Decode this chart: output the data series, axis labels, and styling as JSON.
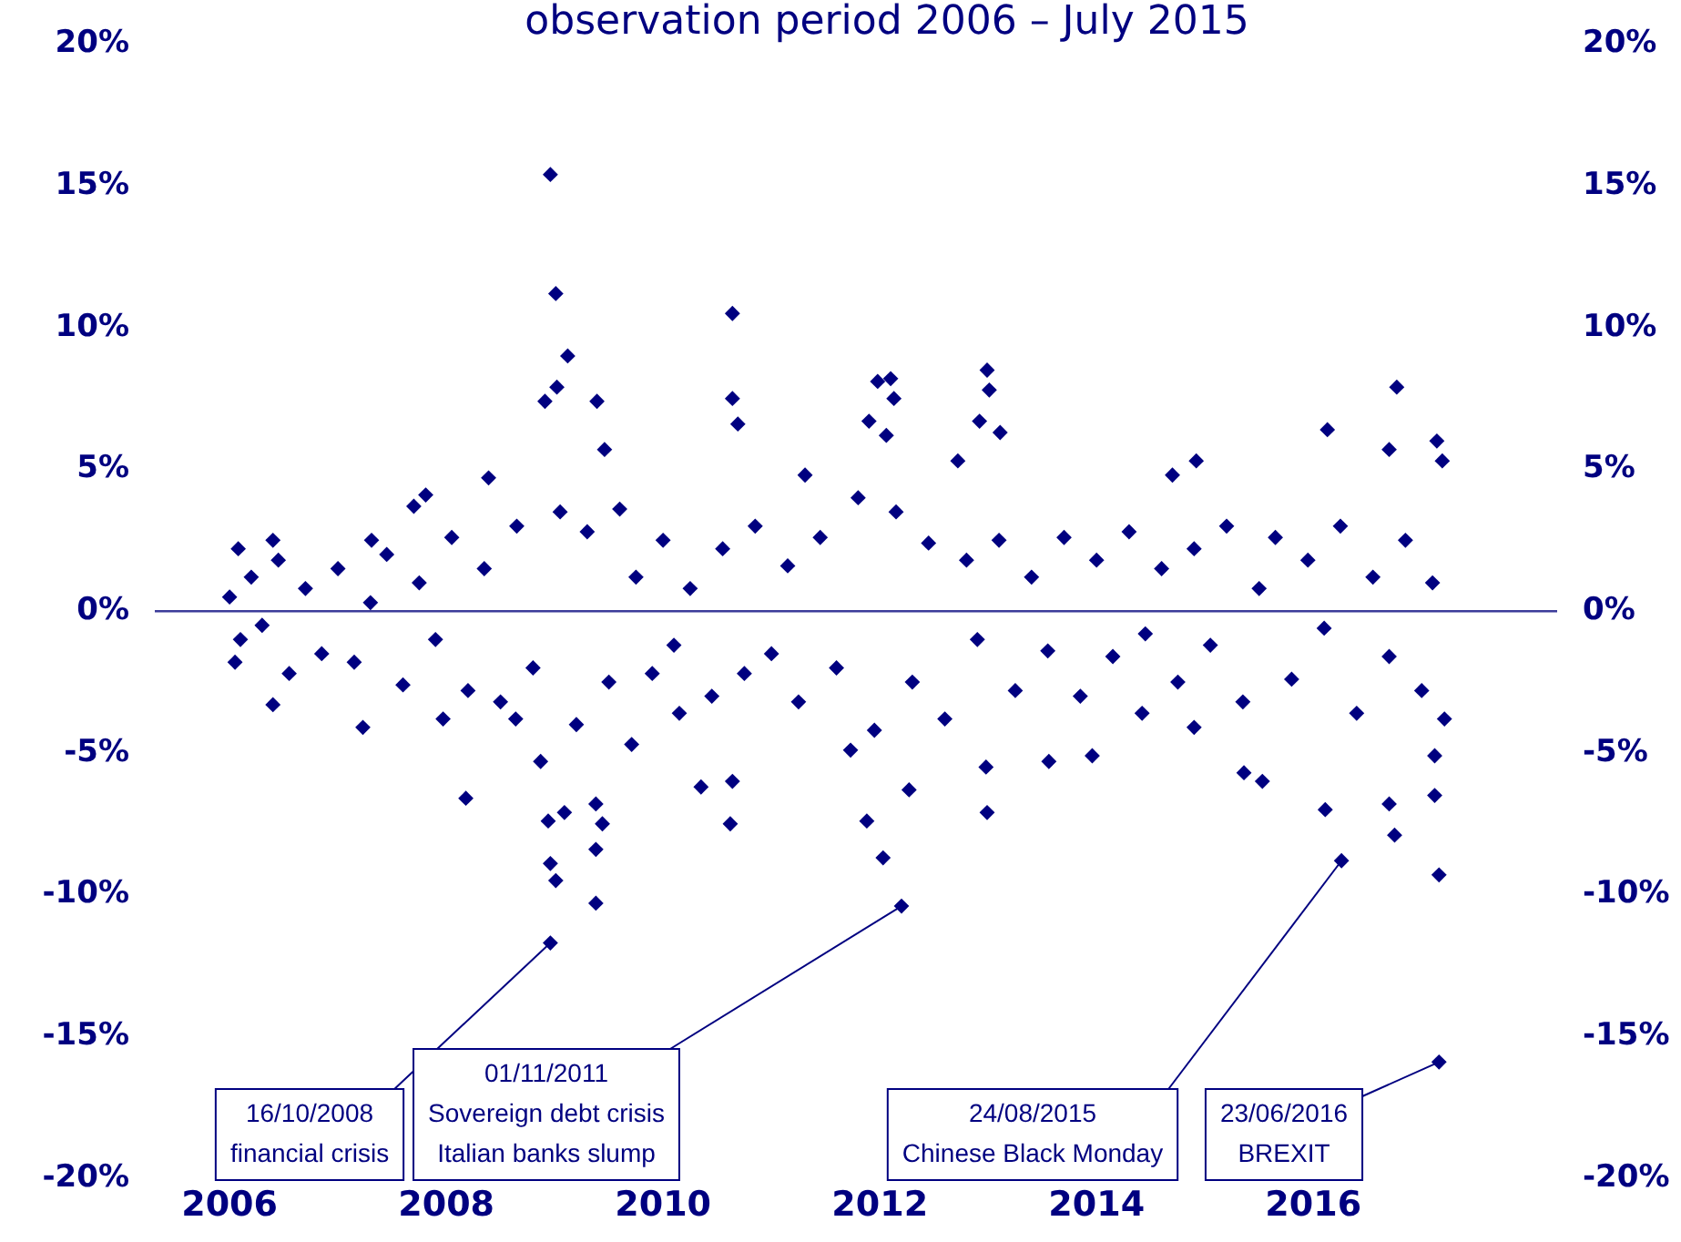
{
  "chart_data": {
    "type": "scatter",
    "title": "observation period 2006 – July 2015",
    "marker": "diamond",
    "grid": false,
    "legend": false,
    "xlim": [
      2005.31,
      2018.25
    ],
    "xticks": [
      2006,
      2008,
      2010,
      2012,
      2014,
      2016
    ],
    "ylim": [
      -20,
      20
    ],
    "yticks": [
      {
        "value": -20,
        "label": "-20%"
      },
      {
        "value": -15,
        "label": "-15%"
      },
      {
        "value": -10,
        "label": "-10%"
      },
      {
        "value": -5,
        "label": "-5%"
      },
      {
        "value": 0,
        "label": "0%"
      },
      {
        "value": 5,
        "label": "5%"
      },
      {
        "value": 10,
        "label": "10%"
      },
      {
        "value": 15,
        "label": "15%"
      },
      {
        "value": 20,
        "label": "20%"
      }
    ],
    "y2lim": [
      -20,
      20
    ],
    "y2ticks": [
      {
        "value": -20,
        "label": "-20%"
      },
      {
        "value": -15,
        "label": "-15%"
      },
      {
        "value": -10,
        "label": "-10%"
      },
      {
        "value": -5,
        "label": "-5%"
      },
      {
        "value": 0,
        "label": "0%"
      },
      {
        "value": 5,
        "label": "5%"
      },
      {
        "value": 10,
        "label": "10%"
      },
      {
        "value": 15,
        "label": "15%"
      },
      {
        "value": 20,
        "label": "20%"
      }
    ],
    "ref_lines": [
      {
        "axis": "y",
        "value": 0,
        "color": "#3c3c9a"
      }
    ],
    "annotations": [
      {
        "text": "16/10/2008\nfinancial crisis",
        "x": 2008.96,
        "y": -11.7
      },
      {
        "text": "01/11/2011\nSovereign debt crisis\nItalian banks slump",
        "x": 2012.2,
        "y": -10.4
      },
      {
        "text": "24/08/2015\nChinese Black Monday",
        "x": 2016.26,
        "y": -8.8
      },
      {
        "text": "23/06/2016\nBREXIT",
        "x": 2017.16,
        "y": -15.9
      }
    ],
    "series": [
      {
        "color": "#000080",
        "x": [
          2008.96,
          2009.01,
          2009.12,
          2009.02,
          2008.91,
          2010.64,
          2010.64,
          2010.69,
          2009.39,
          2009.46,
          2008.39,
          2007.7,
          2007.81,
          2011.31,
          2006.08,
          2006.4,
          2007.31,
          2006.4,
          2006.05,
          2007.23,
          2008.18,
          2007.97,
          2008.87,
          2008.94,
          2008.96,
          2009.01,
          2008.96,
          2009.38,
          2009.38,
          2009.38,
          2009.44,
          2009.09,
          2010.35,
          2010.62,
          2010.64,
          2011.73,
          2008.64,
          2009.71,
          2010.15,
          2011.98,
          2012.1,
          2012.13,
          2011.9,
          2012.06,
          2012.99,
          2013.01,
          2012.92,
          2013.11,
          2012.72,
          2014.92,
          2014.7,
          2016.13,
          2016.77,
          2016.7,
          2017.14,
          2017.19,
          2011.88,
          2012.03,
          2012.2,
          2012.99,
          2012.27,
          2013.56,
          2013.96,
          2015.36,
          2015.53,
          2016.11,
          2016.26,
          2016.75,
          2016.7,
          2017.12,
          2017.16,
          2017.16,
          2014.9,
          2014.42,
          2017.12,
          2017.21,
          2012.98,
          2006.0,
          2006.1,
          2006.2,
          2006.3,
          2006.45,
          2006.55,
          2006.7,
          2006.85,
          2007.0,
          2007.15,
          2007.3,
          2007.45,
          2007.6,
          2007.75,
          2007.9,
          2008.05,
          2008.2,
          2008.35,
          2008.5,
          2008.65,
          2008.8,
          2009.05,
          2009.2,
          2009.3,
          2009.5,
          2009.6,
          2009.75,
          2009.9,
          2010.0,
          2010.1,
          2010.25,
          2010.45,
          2010.55,
          2010.75,
          2010.85,
          2011.0,
          2011.15,
          2011.25,
          2011.45,
          2011.6,
          2011.8,
          2011.95,
          2012.15,
          2012.3,
          2012.45,
          2012.6,
          2012.8,
          2012.9,
          2013.1,
          2013.25,
          2013.4,
          2013.55,
          2013.7,
          2013.85,
          2014.0,
          2014.15,
          2014.3,
          2014.45,
          2014.6,
          2014.75,
          2014.9,
          2015.05,
          2015.2,
          2015.35,
          2015.5,
          2015.65,
          2015.8,
          2015.95,
          2016.1,
          2016.25,
          2016.4,
          2016.55,
          2016.7,
          2016.85,
          2017.0,
          2017.1
        ],
        "values": [
          15.4,
          11.2,
          9.0,
          7.9,
          7.4,
          10.5,
          7.5,
          6.6,
          7.4,
          5.7,
          4.7,
          3.7,
          4.1,
          4.8,
          2.2,
          2.5,
          2.5,
          -3.3,
          -1.8,
          -4.1,
          -6.6,
          -3.8,
          -5.3,
          -7.4,
          -8.9,
          -9.5,
          -11.7,
          -8.4,
          -10.3,
          -6.8,
          -7.5,
          -7.1,
          -6.2,
          -7.5,
          -6.0,
          -4.9,
          -3.8,
          -4.7,
          -3.6,
          8.1,
          8.2,
          7.5,
          6.7,
          6.2,
          8.5,
          7.8,
          6.7,
          6.3,
          5.3,
          5.3,
          4.8,
          6.4,
          7.9,
          5.7,
          6.0,
          5.3,
          -7.4,
          -8.7,
          -10.4,
          -7.1,
          -6.3,
          -5.3,
          -5.1,
          -5.7,
          -6.0,
          -7.0,
          -8.8,
          -7.9,
          -6.8,
          -6.5,
          -9.3,
          -15.9,
          -4.1,
          -3.6,
          -5.1,
          -3.8,
          -5.5,
          0.5,
          -1.0,
          1.2,
          -0.5,
          1.8,
          -2.2,
          0.8,
          -1.5,
          1.5,
          -1.8,
          0.3,
          2.0,
          -2.6,
          1.0,
          -1.0,
          2.6,
          -2.8,
          1.5,
          -3.2,
          3.0,
          -2.0,
          3.5,
          -4.0,
          2.8,
          -2.5,
          3.6,
          1.2,
          -2.2,
          2.5,
          -1.2,
          0.8,
          -3.0,
          2.2,
          -2.2,
          3.0,
          -1.5,
          1.6,
          -3.2,
          2.6,
          -2.0,
          4.0,
          -4.2,
          3.5,
          -2.5,
          2.4,
          -3.8,
          1.8,
          -1.0,
          2.5,
          -2.8,
          1.2,
          -1.4,
          2.6,
          -3.0,
          1.8,
          -1.6,
          2.8,
          -0.8,
          1.5,
          -2.5,
          2.2,
          -1.2,
          3.0,
          -3.2,
          0.8,
          2.6,
          -2.4,
          1.8,
          -0.6,
          3.0,
          -3.6,
          1.2,
          -1.6,
          2.5,
          -2.8,
          1.0
        ]
      }
    ]
  }
}
